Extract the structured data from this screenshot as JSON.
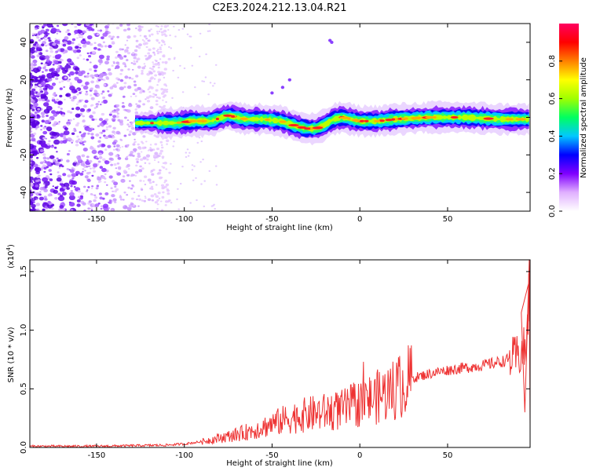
{
  "title": "C2E3.2024.212.13.04.R21",
  "chart_data": [
    {
      "type": "heatmap",
      "name": "spectrogram",
      "xlabel": "Height of straight line (km)",
      "ylabel": "Frequency (Hz)",
      "xlim": [
        -188,
        97
      ],
      "ylim": [
        -50,
        50
      ],
      "x_ticks": [
        -150,
        -100,
        -50,
        0,
        50
      ],
      "y_ticks": [
        -40,
        -20,
        0,
        20,
        40
      ],
      "colorbar": {
        "label": "Normalized spectral amplitude",
        "range": [
          0,
          1
        ],
        "ticks": [
          "0.0",
          "0.2",
          "0.4",
          "0.6",
          "0.8"
        ],
        "colors": [
          "#ffffff",
          "#e0b0ff",
          "#8000ff",
          "#0000ff",
          "#00c8ff",
          "#00ff60",
          "#a0ff00",
          "#ffff00",
          "#ff8000",
          "#ff0000",
          "#ff0060"
        ]
      },
      "ridge": {
        "x": [
          -125,
          -115,
          -105,
          -95,
          -85,
          -75,
          -65,
          -55,
          -45,
          -35,
          -30,
          -25,
          -20,
          -15,
          -10,
          0,
          10,
          20,
          40,
          60,
          80,
          95
        ],
        "freq": [
          -3,
          -3,
          -3,
          -2,
          -2,
          1,
          -1,
          -1,
          -2,
          -5,
          -6,
          -6,
          -4,
          -1,
          0,
          -2,
          -2,
          -1,
          0,
          0,
          -1,
          -1
        ]
      }
    },
    {
      "type": "line",
      "name": "snr",
      "xlabel": "Height of straight line (km)",
      "ylabel": "SNR (10 * v/v)",
      "yscale_label": "(x10",
      "yscale_exp": "4",
      "yscale_close": ")",
      "xlim": [
        -188,
        97
      ],
      "ylim": [
        0,
        1.6
      ],
      "x_ticks": [
        -150,
        -100,
        -50,
        0,
        50
      ],
      "y_ticks": [
        "0.0",
        "0.5",
        "1.0",
        "1.5"
      ],
      "color": "#ee3333",
      "envelope": {
        "x": [
          -188,
          -150,
          -110,
          -100,
          -90,
          -80,
          -70,
          -60,
          -50,
          -40,
          -30,
          -20,
          -10,
          0,
          10,
          20,
          30,
          40,
          50,
          60,
          70,
          80,
          88,
          92,
          95,
          97
        ],
        "y": [
          0.01,
          0.01,
          0.02,
          0.03,
          0.05,
          0.08,
          0.11,
          0.15,
          0.2,
          0.25,
          0.28,
          0.3,
          0.32,
          0.38,
          0.43,
          0.5,
          0.59,
          0.63,
          0.66,
          0.68,
          0.7,
          0.73,
          0.76,
          0.8,
          0.85,
          1.5
        ]
      }
    }
  ]
}
